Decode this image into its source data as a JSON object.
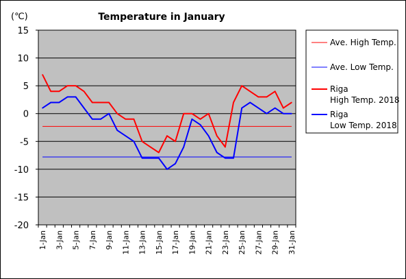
{
  "chart_data": {
    "type": "line",
    "title": "Temperature in January",
    "unit_label": "(℃)",
    "ylim": [
      -20,
      15
    ],
    "y_ticks": [
      15,
      10,
      5,
      0,
      -5,
      -10,
      -15,
      -20
    ],
    "x_tick_labels": [
      "1-Jan",
      "3-Jan",
      "5-Jan",
      "7-Jan",
      "9-Jan",
      "11-Jan",
      "13-Jan",
      "15-Jan",
      "17-Jan",
      "19-Jan",
      "21-Jan",
      "23-Jan",
      "25-Jan",
      "27-Jan",
      "29-Jan",
      "31-Jan"
    ],
    "x": [
      1,
      2,
      3,
      4,
      5,
      6,
      7,
      8,
      9,
      10,
      11,
      12,
      13,
      14,
      15,
      16,
      17,
      18,
      19,
      20,
      21,
      22,
      23,
      24,
      25,
      26,
      27,
      28,
      29,
      30,
      31
    ],
    "plot_background": "#c0c0c0",
    "grid": true,
    "legend_position": "right",
    "series": [
      {
        "name": "Ave. High Temp.",
        "color": "#ff0000",
        "width": 1,
        "constant": -2.3
      },
      {
        "name": "Ave. Low Temp.",
        "color": "#0000ff",
        "width": 1,
        "constant": -7.8
      },
      {
        "name": "Riga High Temp. 2018",
        "legend_lines": [
          "Riga",
          "High Temp. 2018"
        ],
        "color": "#ff0000",
        "width": 2,
        "values": [
          7,
          4,
          4,
          5,
          5,
          4,
          2,
          2,
          2,
          0,
          -1,
          -1,
          -5,
          -6,
          -7,
          -4,
          -5,
          0,
          0,
          -1,
          0,
          -4,
          -6,
          2,
          5,
          4,
          3,
          3,
          4,
          1,
          2
        ]
      },
      {
        "name": "Riga Low Temp. 2018",
        "legend_lines": [
          "Riga",
          "Low Temp. 2018"
        ],
        "color": "#0000ff",
        "width": 2,
        "values": [
          1,
          2,
          2,
          3,
          3,
          1,
          -1,
          -1,
          0,
          -3,
          -4,
          -5,
          -8,
          -8,
          -8,
          -10,
          -9,
          -6,
          -1,
          -2,
          -4,
          -7,
          -8,
          -8,
          1,
          2,
          1,
          0,
          1,
          0,
          0
        ]
      }
    ]
  }
}
